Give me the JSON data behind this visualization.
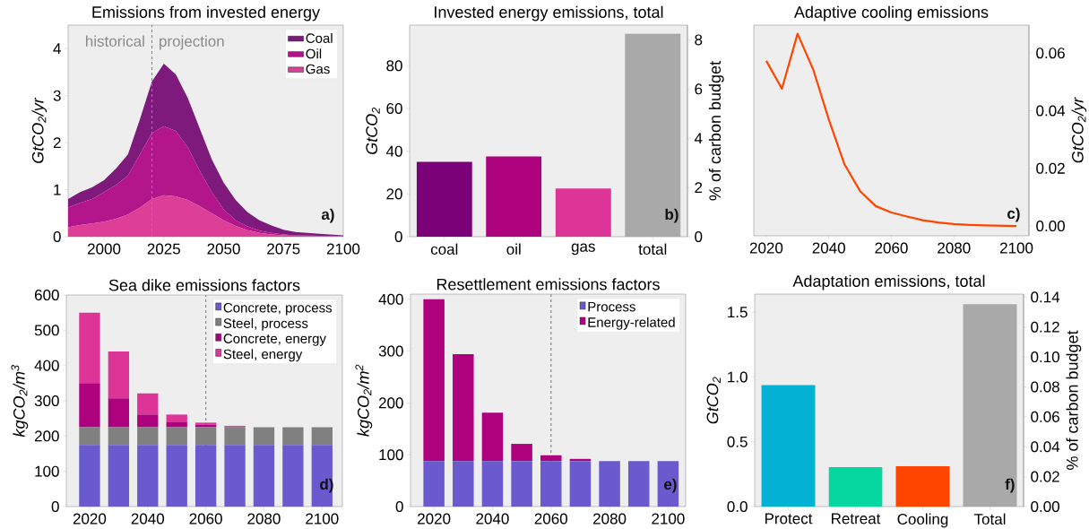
{
  "chart_data": [
    {
      "type": "area",
      "stacked": true,
      "title": "Emissions from invested energy",
      "ylabel": "GtCO$_{2}$/yr",
      "x": [
        1985,
        1990,
        1995,
        2000,
        2005,
        2010,
        2015,
        2020,
        2025,
        2030,
        2035,
        2040,
        2045,
        2050,
        2055,
        2060,
        2065,
        2070,
        2075,
        2080,
        2090,
        2100
      ],
      "series": [
        {
          "name": "Gas",
          "color": "#dd3e98",
          "values": [
            0.2,
            0.25,
            0.28,
            0.32,
            0.38,
            0.47,
            0.62,
            0.8,
            0.88,
            0.86,
            0.78,
            0.65,
            0.5,
            0.35,
            0.23,
            0.14,
            0.08,
            0.05,
            0.03,
            0.02,
            0.01,
            0.01
          ]
        },
        {
          "name": "Oil",
          "color": "#b3168a",
          "values": [
            0.42,
            0.47,
            0.52,
            0.63,
            0.72,
            0.83,
            1.13,
            1.4,
            1.47,
            1.39,
            1.12,
            0.75,
            0.45,
            0.23,
            0.12,
            0.08,
            0.05,
            0.03,
            0.02,
            0.01,
            0.01,
            0.01
          ]
        },
        {
          "name": "Coal",
          "color": "#7d1a7b",
          "values": [
            0.18,
            0.23,
            0.25,
            0.25,
            0.35,
            0.45,
            0.75,
            1.1,
            1.33,
            1.2,
            1.05,
            0.9,
            0.7,
            0.57,
            0.43,
            0.3,
            0.22,
            0.16,
            0.1,
            0.07,
            0.04,
            0.01
          ]
        }
      ],
      "xlim": [
        1985,
        2100
      ],
      "ylim": [
        0,
        4.5
      ],
      "xticks": [
        2000,
        2025,
        2050,
        2075,
        2100
      ],
      "yticks": [
        0,
        1,
        2,
        3,
        4
      ],
      "legend": "top right",
      "ref_lines": [
        {
          "axis": "x",
          "value": 2020,
          "color": "#888888",
          "line_style": "dashed"
        }
      ],
      "annotations": [
        "historical",
        "projection",
        "a)"
      ]
    },
    {
      "type": "bar",
      "title": "Invested energy emissions, total",
      "ylabel": "GtCO$_{2}$",
      "y2label": "% of carbon budget",
      "categories": [
        "coal",
        "oil",
        "gas",
        "total"
      ],
      "values": [
        35,
        37.5,
        22.5,
        95
      ],
      "colors": [
        "#7a0177",
        "#ae017e",
        "#dd3497",
        "#a9a9a9"
      ],
      "ylim": [
        0,
        99
      ],
      "yticks": [
        0,
        20,
        40,
        60,
        80
      ],
      "y2lim": [
        0,
        8.6
      ],
      "y2ticks": [
        0,
        2,
        4,
        6,
        8
      ],
      "annotations": [
        "b)"
      ]
    },
    {
      "type": "line",
      "title": "Adaptive cooling emissions",
      "y2label": "GtCO$_{2}$/yr",
      "x": [
        2020,
        2025,
        2030,
        2035,
        2040,
        2045,
        2050,
        2055,
        2060,
        2065,
        2070,
        2075,
        2080,
        2085,
        2090,
        2095,
        2100
      ],
      "series": [
        {
          "color": "#ff4500",
          "axis": "y2",
          "values": [
            0.0573,
            0.0476,
            0.0667,
            0.0543,
            0.0369,
            0.0214,
            0.0121,
            0.0069,
            0.0047,
            0.0033,
            0.002,
            0.0012,
            0.0007,
            0.0004,
            0.0002,
            0.0001,
            0
          ]
        }
      ],
      "xlim": [
        2016,
        2104
      ],
      "xticks": [
        2020,
        2040,
        2060,
        2080,
        2100
      ],
      "y2lim": [
        -0.0034,
        0.0697
      ],
      "y2ticks": [
        {
          "value": 0,
          "label": "0.00"
        },
        {
          "value": 0.02,
          "label": "0.02"
        },
        {
          "value": 0.04,
          "label": "0.04"
        },
        {
          "value": 0.06,
          "label": "0.06"
        }
      ],
      "annotations": [
        "c)"
      ]
    },
    {
      "type": "bar",
      "stacked": true,
      "title": "Sea dike emissions factors",
      "ylabel": "kgCO$_{2}$/m$^{3}$",
      "x": [
        2020,
        2030,
        2040,
        2050,
        2060,
        2070,
        2080,
        2090,
        2100
      ],
      "series": [
        {
          "name": "Concrete, process",
          "color": "#6a5acd",
          "values": [
            175,
            175,
            175,
            175,
            175,
            175,
            175,
            175,
            175
          ]
        },
        {
          "name": "Steel, process",
          "color": "#808080",
          "values": [
            50,
            50,
            50,
            50,
            50,
            50,
            50,
            50,
            50
          ]
        },
        {
          "name": "Concrete, energy",
          "color": "#ae017e",
          "values": [
            125,
            82,
            36,
            14,
            7,
            2,
            0,
            0,
            0
          ]
        },
        {
          "name": "Steel, energy",
          "color": "#dd3497",
          "values": [
            200,
            133,
            60,
            22,
            6,
            2,
            0,
            0,
            0
          ]
        }
      ],
      "xlim": [
        2012,
        2107
      ],
      "ylim": [
        0,
        600
      ],
      "xticks": [
        2020,
        2040,
        2060,
        2080,
        2100
      ],
      "yticks": [
        0,
        100,
        200,
        300,
        400,
        500,
        600
      ],
      "legend": "top right",
      "ref_lines": [
        {
          "axis": "x",
          "value": 2060,
          "color": "#888888",
          "line_style": "dashed"
        }
      ],
      "annotations": [
        "d)"
      ]
    },
    {
      "type": "bar",
      "stacked": true,
      "title": "Resettlement emissions factors",
      "ylabel": "kgCO$_{2}$/m$^{2}$",
      "x": [
        2020,
        2030,
        2040,
        2050,
        2060,
        2070,
        2080,
        2090,
        2100
      ],
      "series": [
        {
          "name": "Process",
          "color": "#6a5acd",
          "values": [
            88,
            88,
            88,
            88,
            88,
            88,
            88,
            88,
            88
          ]
        },
        {
          "name": "Energy-related",
          "color": "#ae017e",
          "values": [
            312,
            206,
            93,
            33,
            11,
            4,
            0,
            0,
            0
          ]
        }
      ],
      "xlim": [
        2012,
        2106
      ],
      "ylim": [
        0,
        410
      ],
      "xticks": [
        2020,
        2040,
        2060,
        2080,
        2100
      ],
      "yticks": [
        0,
        100,
        200,
        300,
        400
      ],
      "legend": "top right",
      "ref_lines": [
        {
          "axis": "x",
          "value": 2060,
          "color": "#888888",
          "line_style": "dashed"
        }
      ],
      "annotations": [
        "e)"
      ]
    },
    {
      "type": "bar",
      "title": "Adaptation emissions, total",
      "ylabel": "GtCO$_{2}$",
      "y2label": "% of carbon budget",
      "categories": [
        "Protect",
        "Retreat",
        "Cooling",
        "Total"
      ],
      "values": [
        0.937,
        0.305,
        0.312,
        1.563
      ],
      "colors": [
        "#03b2d4",
        "#06d6a0",
        "#ff4500",
        "#a9a9a9"
      ],
      "ylim": [
        0,
        1.64
      ],
      "yticks": [
        {
          "value": 0,
          "label": "0.0"
        },
        {
          "value": 0.5,
          "label": "0.5"
        },
        {
          "value": 1,
          "label": "1.0"
        },
        {
          "value": 1.5,
          "label": "1.5"
        }
      ],
      "y2lim": [
        0,
        0.142
      ],
      "y2ticks": [
        {
          "value": 0,
          "label": "0.00"
        },
        {
          "value": 0.02,
          "label": "0.02"
        },
        {
          "value": 0.04,
          "label": "0.04"
        },
        {
          "value": 0.06,
          "label": "0.06"
        },
        {
          "value": 0.08,
          "label": "0.08"
        },
        {
          "value": 0.1,
          "label": "0.10"
        },
        {
          "value": 0.12,
          "label": "0.12"
        },
        {
          "value": 0.14,
          "label": "0.14"
        }
      ],
      "annotations": [
        "f)"
      ]
    }
  ]
}
